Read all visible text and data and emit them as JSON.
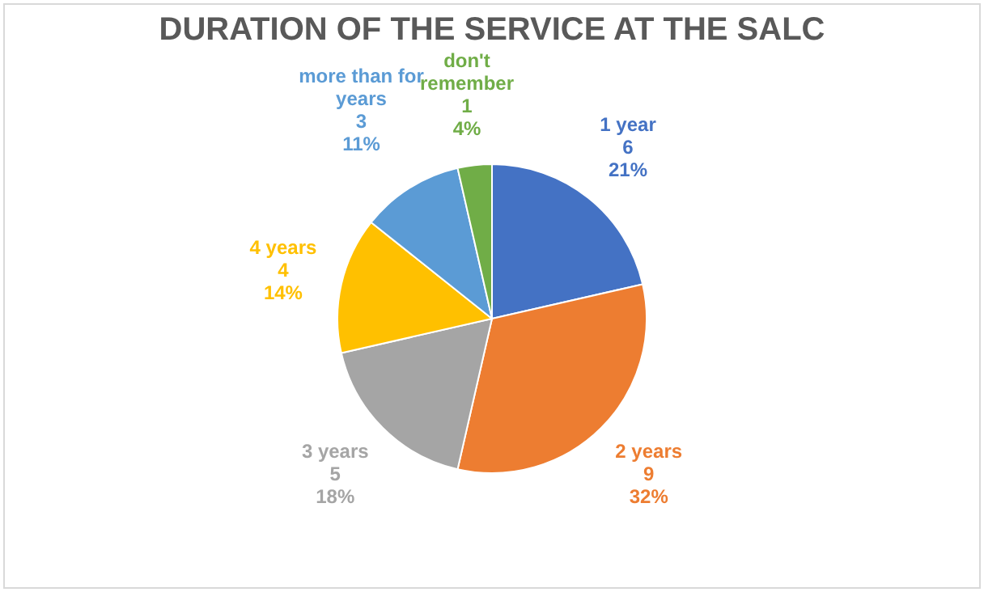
{
  "chart_data": {
    "type": "pie",
    "title": "DURATION OF THE SERVICE AT THE SALC",
    "categories": [
      "1 year",
      "2 years",
      "3 years",
      "4 years",
      "more than for years",
      "don't remember"
    ],
    "values": [
      6,
      9,
      5,
      4,
      3,
      1
    ],
    "colors": [
      "#4472c4",
      "#ed7d31",
      "#a5a5a5",
      "#ffc000",
      "#5b9bd5",
      "#70ad47"
    ],
    "value_labels": [
      "6\n21%",
      "9\n32%",
      "5\n18%",
      "4\n14%",
      "3\n11%",
      "1\n4%"
    ],
    "legend": false
  }
}
